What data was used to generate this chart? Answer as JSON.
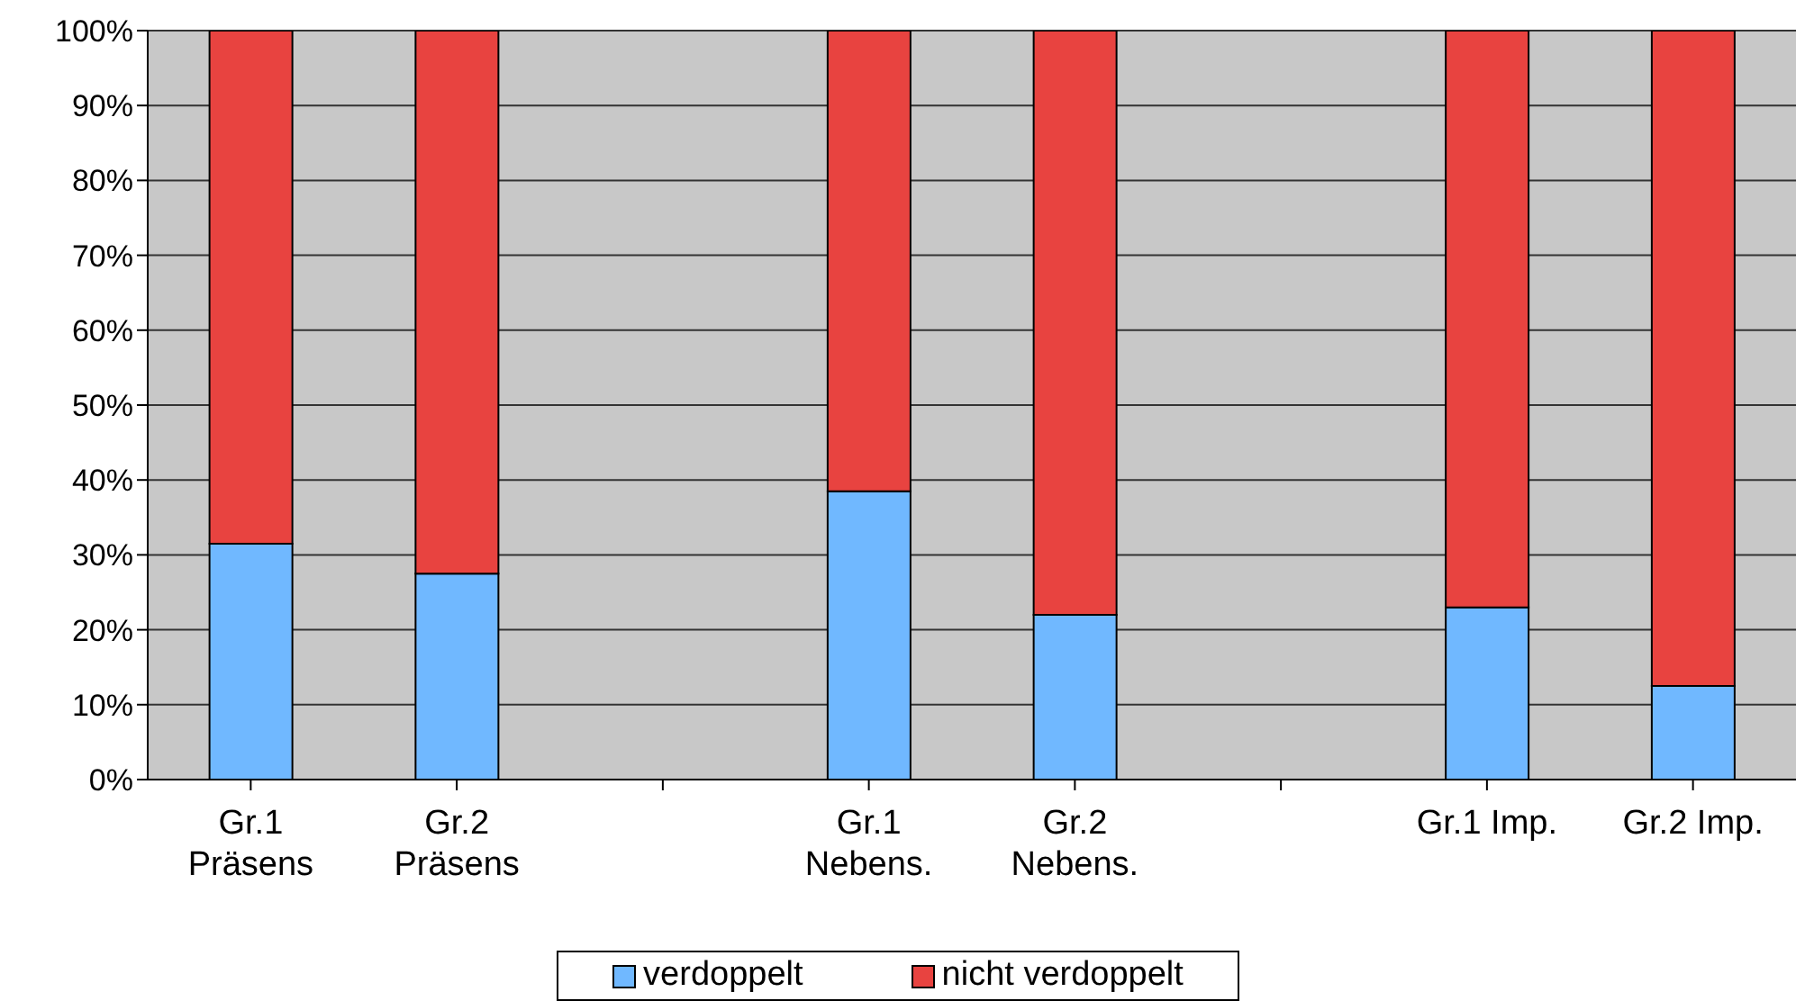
{
  "chart_data": {
    "type": "bar",
    "stacked": true,
    "categories": [
      "Gr.1\nPräsens",
      "Gr.2\nPräsens",
      null,
      "Gr.1\nNebens.",
      "Gr.2\nNebens.",
      null,
      "Gr.1 Imp.",
      "Gr.2 Imp."
    ],
    "series": [
      {
        "name": "verdoppelt",
        "color": "#70b8ff",
        "values": [
          31.5,
          27.5,
          null,
          38.5,
          22,
          null,
          23,
          12.5
        ]
      },
      {
        "name": "nicht verdoppelt",
        "color": "#e84340",
        "values": [
          68.5,
          72.5,
          null,
          61.5,
          78,
          null,
          77,
          87.5
        ]
      }
    ],
    "ylim": [
      0,
      100
    ],
    "yticks": [
      {
        "value": 0,
        "label": "0%"
      },
      {
        "value": 10,
        "label": "10%"
      },
      {
        "value": 20,
        "label": "20%"
      },
      {
        "value": 30,
        "label": "30%"
      },
      {
        "value": 40,
        "label": "40%"
      },
      {
        "value": 50,
        "label": "50%"
      },
      {
        "value": 60,
        "label": "60%"
      },
      {
        "value": 70,
        "label": "70%"
      },
      {
        "value": 80,
        "label": "80%"
      },
      {
        "value": 90,
        "label": "90%"
      },
      {
        "value": 100,
        "label": "100%"
      }
    ],
    "grid": "y",
    "legend": "bottom"
  }
}
